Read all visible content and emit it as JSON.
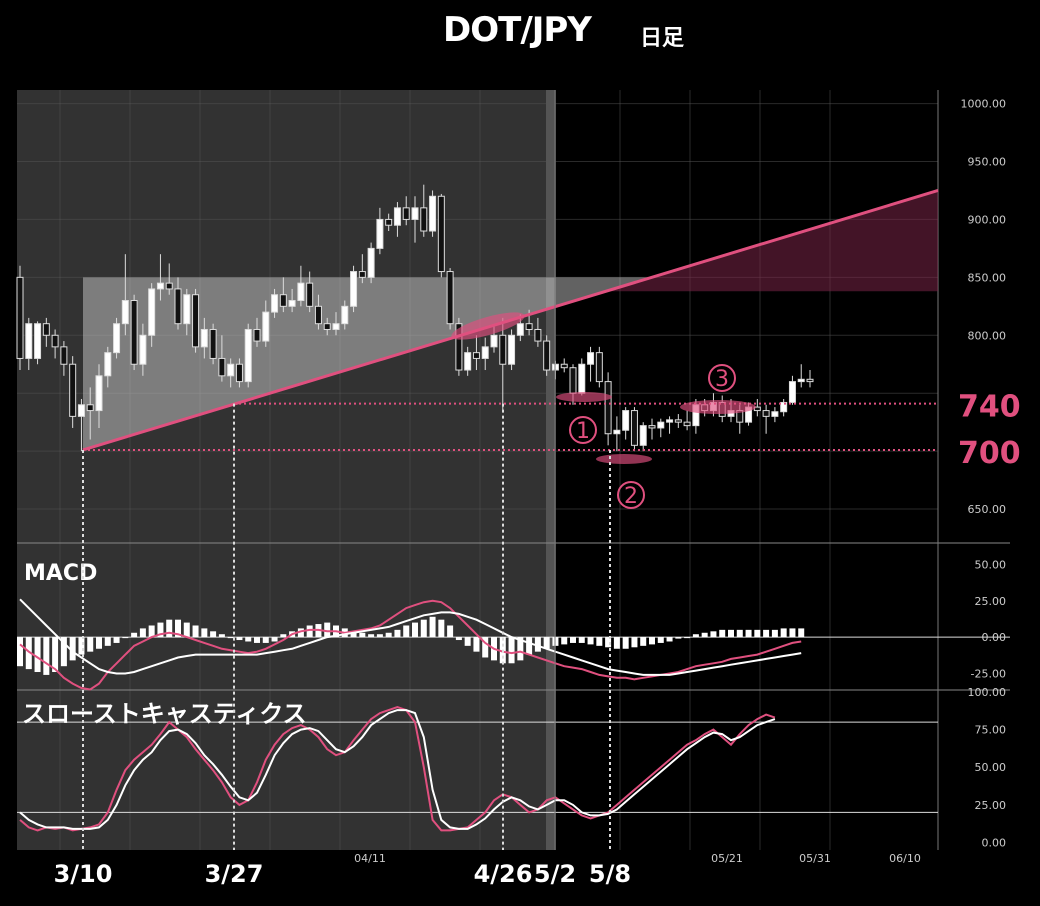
{
  "chart_data": {
    "type": "candlestick",
    "title": "DOT/JPY",
    "subtitle": "日足",
    "price_axis": {
      "range": [
        625,
        1010
      ],
      "ticks": [
        "1000.00",
        "950.00",
        "900.00",
        "850.00",
        "800.00",
        "650.00"
      ]
    },
    "date_axis_ticks": [
      "04/11",
      "05/21",
      "05/31",
      "06/10"
    ],
    "date_markers": [
      "3/10",
      "3/27",
      "4/26",
      "5/2",
      "5/8"
    ],
    "levels": [
      {
        "label": "740",
        "value": 741
      },
      {
        "label": "700",
        "value": 701
      }
    ],
    "zones": [
      {
        "value_low": 838,
        "value_high": 850
      }
    ],
    "trendline": {
      "from": {
        "date": "3/10",
        "value": 701
      },
      "to": {
        "date": "06/12",
        "value": 925
      }
    },
    "annotations": [
      {
        "label": "①",
        "date": "5/2"
      },
      {
        "label": "②",
        "date": "5/8"
      },
      {
        "label": "③",
        "date": "05/15"
      }
    ],
    "candles": [
      {
        "o": 850,
        "h": 860,
        "l": 770,
        "c": 780
      },
      {
        "o": 780,
        "h": 815,
        "l": 770,
        "c": 810
      },
      {
        "o": 780,
        "h": 812,
        "l": 775,
        "c": 810
      },
      {
        "o": 810,
        "h": 815,
        "l": 790,
        "c": 800
      },
      {
        "o": 800,
        "h": 805,
        "l": 780,
        "c": 790
      },
      {
        "o": 790,
        "h": 795,
        "l": 765,
        "c": 775
      },
      {
        "o": 775,
        "h": 782,
        "l": 720,
        "c": 730
      },
      {
        "o": 730,
        "h": 745,
        "l": 700,
        "c": 740
      },
      {
        "o": 740,
        "h": 755,
        "l": 710,
        "c": 735
      },
      {
        "o": 735,
        "h": 775,
        "l": 720,
        "c": 765
      },
      {
        "o": 765,
        "h": 790,
        "l": 755,
        "c": 785
      },
      {
        "o": 785,
        "h": 815,
        "l": 780,
        "c": 810
      },
      {
        "o": 810,
        "h": 870,
        "l": 800,
        "c": 830
      },
      {
        "o": 830,
        "h": 835,
        "l": 770,
        "c": 775
      },
      {
        "o": 775,
        "h": 810,
        "l": 765,
        "c": 800
      },
      {
        "o": 800,
        "h": 845,
        "l": 790,
        "c": 840
      },
      {
        "o": 840,
        "h": 870,
        "l": 830,
        "c": 845
      },
      {
        "o": 845,
        "h": 862,
        "l": 835,
        "c": 840
      },
      {
        "o": 840,
        "h": 850,
        "l": 805,
        "c": 810
      },
      {
        "o": 810,
        "h": 840,
        "l": 800,
        "c": 835
      },
      {
        "o": 835,
        "h": 840,
        "l": 785,
        "c": 790
      },
      {
        "o": 790,
        "h": 815,
        "l": 780,
        "c": 805
      },
      {
        "o": 805,
        "h": 810,
        "l": 775,
        "c": 780
      },
      {
        "o": 780,
        "h": 800,
        "l": 760,
        "c": 765
      },
      {
        "o": 765,
        "h": 780,
        "l": 755,
        "c": 775
      },
      {
        "o": 775,
        "h": 780,
        "l": 755,
        "c": 760
      },
      {
        "o": 760,
        "h": 810,
        "l": 755,
        "c": 805
      },
      {
        "o": 805,
        "h": 815,
        "l": 790,
        "c": 795
      },
      {
        "o": 795,
        "h": 830,
        "l": 790,
        "c": 820
      },
      {
        "o": 820,
        "h": 840,
        "l": 815,
        "c": 835
      },
      {
        "o": 835,
        "h": 850,
        "l": 820,
        "c": 825
      },
      {
        "o": 825,
        "h": 840,
        "l": 820,
        "c": 830
      },
      {
        "o": 830,
        "h": 860,
        "l": 825,
        "c": 845
      },
      {
        "o": 845,
        "h": 855,
        "l": 820,
        "c": 825
      },
      {
        "o": 825,
        "h": 835,
        "l": 805,
        "c": 810
      },
      {
        "o": 810,
        "h": 815,
        "l": 800,
        "c": 805
      },
      {
        "o": 805,
        "h": 820,
        "l": 800,
        "c": 810
      },
      {
        "o": 810,
        "h": 830,
        "l": 805,
        "c": 825
      },
      {
        "o": 825,
        "h": 860,
        "l": 820,
        "c": 855
      },
      {
        "o": 855,
        "h": 870,
        "l": 845,
        "c": 850
      },
      {
        "o": 850,
        "h": 880,
        "l": 845,
        "c": 875
      },
      {
        "o": 875,
        "h": 910,
        "l": 870,
        "c": 900
      },
      {
        "o": 900,
        "h": 905,
        "l": 890,
        "c": 895
      },
      {
        "o": 895,
        "h": 915,
        "l": 885,
        "c": 910
      },
      {
        "o": 910,
        "h": 920,
        "l": 895,
        "c": 900
      },
      {
        "o": 900,
        "h": 920,
        "l": 880,
        "c": 910
      },
      {
        "o": 910,
        "h": 930,
        "l": 885,
        "c": 890
      },
      {
        "o": 890,
        "h": 925,
        "l": 885,
        "c": 920
      },
      {
        "o": 920,
        "h": 922,
        "l": 850,
        "c": 855
      },
      {
        "o": 855,
        "h": 858,
        "l": 805,
        "c": 810
      },
      {
        "o": 810,
        "h": 815,
        "l": 765,
        "c": 770
      },
      {
        "o": 770,
        "h": 790,
        "l": 765,
        "c": 785
      },
      {
        "o": 785,
        "h": 800,
        "l": 770,
        "c": 780
      },
      {
        "o": 780,
        "h": 798,
        "l": 770,
        "c": 790
      },
      {
        "o": 790,
        "h": 808,
        "l": 785,
        "c": 800
      },
      {
        "o": 800,
        "h": 815,
        "l": 735,
        "c": 775
      },
      {
        "o": 775,
        "h": 805,
        "l": 770,
        "c": 800
      },
      {
        "o": 800,
        "h": 818,
        "l": 795,
        "c": 810
      },
      {
        "o": 810,
        "h": 822,
        "l": 800,
        "c": 805
      },
      {
        "o": 805,
        "h": 815,
        "l": 790,
        "c": 795
      },
      {
        "o": 795,
        "h": 800,
        "l": 765,
        "c": 770
      },
      {
        "o": 770,
        "h": 778,
        "l": 762,
        "c": 775
      },
      {
        "o": 775,
        "h": 780,
        "l": 768,
        "c": 772
      },
      {
        "o": 772,
        "h": 775,
        "l": 740,
        "c": 750
      },
      {
        "o": 750,
        "h": 780,
        "l": 748,
        "c": 775
      },
      {
        "o": 775,
        "h": 790,
        "l": 760,
        "c": 785
      },
      {
        "o": 785,
        "h": 790,
        "l": 755,
        "c": 760
      },
      {
        "o": 760,
        "h": 768,
        "l": 705,
        "c": 715
      },
      {
        "o": 715,
        "h": 730,
        "l": 700,
        "c": 718
      },
      {
        "o": 718,
        "h": 738,
        "l": 710,
        "c": 735
      },
      {
        "o": 735,
        "h": 738,
        "l": 700,
        "c": 705
      },
      {
        "o": 705,
        "h": 725,
        "l": 700,
        "c": 722
      },
      {
        "o": 722,
        "h": 728,
        "l": 710,
        "c": 720
      },
      {
        "o": 720,
        "h": 728,
        "l": 712,
        "c": 725
      },
      {
        "o": 725,
        "h": 730,
        "l": 715,
        "c": 727
      },
      {
        "o": 727,
        "h": 732,
        "l": 720,
        "c": 725
      },
      {
        "o": 725,
        "h": 735,
        "l": 718,
        "c": 722
      },
      {
        "o": 722,
        "h": 745,
        "l": 715,
        "c": 740
      },
      {
        "o": 740,
        "h": 745,
        "l": 730,
        "c": 735
      },
      {
        "o": 735,
        "h": 750,
        "l": 730,
        "c": 742
      },
      {
        "o": 742,
        "h": 748,
        "l": 725,
        "c": 730
      },
      {
        "o": 730,
        "h": 745,
        "l": 725,
        "c": 735
      },
      {
        "o": 735,
        "h": 740,
        "l": 715,
        "c": 725
      },
      {
        "o": 725,
        "h": 742,
        "l": 722,
        "c": 738
      },
      {
        "o": 738,
        "h": 745,
        "l": 730,
        "c": 735
      },
      {
        "o": 735,
        "h": 740,
        "l": 715,
        "c": 730
      },
      {
        "o": 730,
        "h": 738,
        "l": 725,
        "c": 734
      },
      {
        "o": 734,
        "h": 745,
        "l": 730,
        "c": 742
      },
      {
        "o": 742,
        "h": 765,
        "l": 740,
        "c": 760
      },
      {
        "o": 760,
        "h": 775,
        "l": 755,
        "c": 762
      },
      {
        "o": 762,
        "h": 770,
        "l": 755,
        "c": 760
      }
    ],
    "macd": {
      "label": "MACD",
      "range": [
        -35,
        62
      ],
      "ticks": [
        "50.00",
        "25.00",
        "0.00",
        "-25.00"
      ],
      "macd_line": [
        -5,
        -10,
        -14,
        -18,
        -22,
        -28,
        -32,
        -35,
        -36,
        -32,
        -24,
        -18,
        -12,
        -6,
        -3,
        0,
        2,
        3,
        2,
        0,
        -2,
        -4,
        -6,
        -8,
        -9,
        -10,
        -11,
        -10,
        -8,
        -5,
        -2,
        2,
        4,
        5,
        5,
        4,
        4,
        3,
        4,
        5,
        6,
        8,
        12,
        16,
        20,
        22,
        24,
        25,
        24,
        20,
        14,
        8,
        2,
        -4,
        -8,
        -10,
        -11,
        -10,
        -12,
        -14,
        -16,
        -18,
        -20,
        -21,
        -22,
        -24,
        -26,
        -27,
        -28,
        -28,
        -29,
        -28,
        -27,
        -26,
        -25,
        -24,
        -22,
        -20,
        -19,
        -18,
        -17,
        -15,
        -14,
        -13,
        -12,
        -10,
        -8,
        -6,
        -4,
        -3
      ],
      "signal_line": [
        26,
        20,
        14,
        8,
        2,
        -4,
        -10,
        -14,
        -18,
        -22,
        -24,
        -25,
        -25,
        -24,
        -22,
        -20,
        -18,
        -16,
        -14,
        -13,
        -12,
        -12,
        -12,
        -12,
        -12,
        -12,
        -12,
        -12,
        -11,
        -10,
        -9,
        -8,
        -6,
        -4,
        -2,
        0,
        1,
        2,
        3,
        4,
        5,
        6,
        7,
        9,
        11,
        13,
        15,
        16,
        17,
        17,
        16,
        14,
        12,
        9,
        6,
        3,
        0,
        -2,
        -4,
        -6,
        -8,
        -10,
        -12,
        -14,
        -16,
        -18,
        -20,
        -22,
        -23,
        -24,
        -25,
        -26,
        -26,
        -26,
        -26,
        -25,
        -24,
        -23,
        -22,
        -21,
        -20,
        -19,
        -18,
        -17,
        -16,
        -15,
        -14,
        -13,
        -12,
        -11
      ],
      "histogram": [
        -20,
        -22,
        -24,
        -26,
        -24,
        -20,
        -16,
        -12,
        -10,
        -8,
        -6,
        -4,
        0,
        3,
        6,
        8,
        10,
        12,
        12,
        10,
        8,
        6,
        4,
        2,
        0,
        -2,
        -3,
        -4,
        -4,
        -3,
        2,
        4,
        6,
        8,
        9,
        10,
        8,
        6,
        4,
        3,
        2,
        2,
        3,
        5,
        8,
        10,
        12,
        14,
        12,
        8,
        -2,
        -6,
        -10,
        -14,
        -16,
        -18,
        -18,
        -16,
        -12,
        -10,
        -8,
        -6,
        -5,
        -4,
        -4,
        -5,
        -6,
        -7,
        -8,
        -8,
        -7,
        -6,
        -5,
        -4,
        -3,
        -1,
        0,
        2,
        3,
        4,
        5,
        5,
        5,
        5,
        5,
        5,
        5,
        6,
        6,
        6
      ],
      "zero": 0
    },
    "stochastic": {
      "label": "スローストキャスティクス",
      "range": [
        -5,
        100
      ],
      "ticks": [
        "100.00",
        "75.00",
        "50.00",
        "25.00",
        "0.00"
      ],
      "levels": [
        80,
        20
      ],
      "k_line": [
        15,
        10,
        8,
        10,
        9,
        10,
        8,
        9,
        10,
        12,
        20,
        35,
        48,
        55,
        60,
        65,
        72,
        80,
        75,
        70,
        62,
        55,
        48,
        40,
        30,
        25,
        28,
        40,
        55,
        65,
        72,
        76,
        78,
        75,
        70,
        62,
        58,
        60,
        68,
        75,
        82,
        86,
        88,
        90,
        88,
        80,
        50,
        15,
        8,
        8,
        9,
        10,
        15,
        20,
        28,
        32,
        30,
        25,
        20,
        22,
        28,
        30,
        26,
        22,
        18,
        16,
        18,
        20,
        25,
        30,
        35,
        40,
        45,
        50,
        55,
        60,
        65,
        68,
        72,
        75,
        70,
        65,
        72,
        78,
        82,
        85,
        83
      ],
      "d_line": [
        20,
        15,
        12,
        10,
        10,
        10,
        9,
        9,
        9,
        10,
        15,
        25,
        38,
        48,
        55,
        60,
        68,
        74,
        75,
        72,
        66,
        58,
        52,
        45,
        37,
        30,
        28,
        33,
        45,
        58,
        66,
        72,
        75,
        76,
        74,
        68,
        62,
        60,
        64,
        70,
        78,
        82,
        86,
        88,
        88,
        86,
        70,
        35,
        15,
        10,
        9,
        9,
        12,
        16,
        22,
        27,
        30,
        28,
        24,
        22,
        25,
        28,
        28,
        25,
        20,
        18,
        18,
        19,
        22,
        27,
        32,
        37,
        42,
        47,
        52,
        57,
        62,
        66,
        70,
        73,
        72,
        68,
        70,
        74,
        78,
        80,
        82
      ]
    }
  }
}
